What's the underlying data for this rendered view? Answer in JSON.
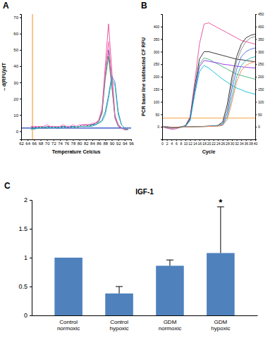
{
  "chart_data": [
    {
      "type": "line",
      "panel_label": "A",
      "x_label": "Temperature Celcius",
      "y_label": "– d(RFU)/dT",
      "x": [
        65,
        66,
        67,
        68,
        69,
        70,
        71,
        72,
        73,
        74,
        75,
        76,
        77,
        78,
        79,
        80,
        81,
        82,
        83,
        84,
        85,
        86,
        87,
        88,
        89,
        90,
        91,
        92,
        93,
        94,
        95
      ],
      "xlim": [
        62,
        96
      ],
      "xticks": [
        62,
        64,
        66,
        68,
        70,
        72,
        74,
        76,
        78,
        80,
        82,
        84,
        86,
        88,
        90,
        92,
        94,
        96
      ],
      "ylim": [
        -5,
        72
      ],
      "yticks": [
        0,
        10,
        20,
        30,
        40,
        50,
        60,
        70
      ],
      "reference_lines": [
        {
          "axis": "x",
          "value": 65.5,
          "color": "#f4a340"
        },
        {
          "axis": "y",
          "value": 2,
          "color": "#1f3fbf"
        }
      ],
      "series": [
        {
          "color": "#e8489a",
          "values": [
            2,
            3,
            2,
            3,
            2,
            3,
            3,
            2,
            3,
            3,
            2,
            3,
            3,
            3,
            3,
            3,
            3,
            4,
            4,
            4,
            5,
            7,
            14,
            40,
            66,
            38,
            10,
            4,
            2,
            1,
            1
          ]
        },
        {
          "color": "#7b3fa0",
          "values": [
            3,
            2,
            3,
            2,
            3,
            2,
            3,
            3,
            2,
            3,
            3,
            3,
            2,
            3,
            3,
            3,
            4,
            4,
            3,
            4,
            5,
            6,
            12,
            35,
            50,
            30,
            8,
            3,
            2,
            1,
            1
          ]
        },
        {
          "color": "#2e8b57",
          "values": [
            2,
            2,
            2,
            3,
            2,
            2,
            3,
            2,
            3,
            2,
            3,
            3,
            3,
            3,
            2,
            3,
            3,
            3,
            4,
            4,
            4,
            6,
            11,
            32,
            46,
            28,
            9,
            4,
            2,
            1,
            1
          ]
        },
        {
          "color": "#1f77d4",
          "values": [
            1,
            2,
            2,
            2,
            2,
            3,
            2,
            3,
            2,
            2,
            3,
            2,
            3,
            3,
            3,
            3,
            3,
            3,
            3,
            4,
            4,
            5,
            7,
            12,
            22,
            34,
            30,
            12,
            4,
            2,
            1
          ]
        },
        {
          "color": "#20b2aa",
          "values": [
            2,
            1,
            2,
            2,
            3,
            2,
            2,
            2,
            3,
            2,
            2,
            3,
            3,
            2,
            3,
            3,
            3,
            3,
            3,
            3,
            4,
            5,
            6,
            10,
            20,
            32,
            28,
            10,
            4,
            2,
            1
          ]
        },
        {
          "color": "#ff69b4",
          "values": [
            3,
            3,
            3,
            3,
            3,
            4,
            3,
            3,
            3,
            3,
            4,
            3,
            3,
            4,
            3,
            4,
            4,
            4,
            4,
            5,
            5,
            7,
            13,
            36,
            55,
            33,
            9,
            4,
            2,
            1,
            1
          ]
        }
      ]
    },
    {
      "type": "line",
      "panel_label": "B",
      "x_label": "Cycle",
      "y_label": "PCR base line subtracted CF RFU",
      "x": [
        0,
        2,
        4,
        6,
        8,
        10,
        12,
        14,
        16,
        18,
        20,
        22,
        24,
        26,
        28,
        30,
        32,
        34,
        36,
        38,
        40
      ],
      "xlim": [
        0,
        40
      ],
      "xticks": [
        0,
        2,
        4,
        6,
        8,
        10,
        12,
        14,
        16,
        18,
        20,
        22,
        24,
        26,
        28,
        30,
        32,
        34,
        36,
        38,
        40
      ],
      "ylim": [
        -50,
        450
      ],
      "yticks": [
        0,
        50,
        100,
        150,
        200,
        250,
        300,
        350,
        400
      ],
      "y2lim": [
        -50,
        450
      ],
      "y2ticks": [
        0,
        50,
        100,
        150,
        200,
        250,
        300,
        350,
        400,
        450
      ],
      "reference_lines": [
        {
          "axis": "y",
          "value": 35,
          "color": "#f4a340"
        }
      ],
      "series": [
        {
          "color": "#e8489a",
          "values": [
            0,
            -5,
            -10,
            -8,
            0,
            5,
            40,
            180,
            330,
            410,
            415,
            405,
            395,
            385,
            375,
            365,
            355,
            345,
            340,
            335,
            330
          ]
        },
        {
          "color": "#222222",
          "values": [
            0,
            -3,
            -5,
            -4,
            0,
            4,
            35,
            160,
            270,
            300,
            300,
            295,
            290,
            285,
            280,
            275,
            270,
            268,
            265,
            262,
            260
          ]
        },
        {
          "color": "#3cb371",
          "values": [
            0,
            -2,
            -4,
            -3,
            0,
            3,
            30,
            150,
            250,
            275,
            270,
            260,
            250,
            240,
            230,
            220,
            210,
            205,
            200,
            195,
            190
          ]
        },
        {
          "color": "#8a2be2",
          "values": [
            0,
            -2,
            -3,
            -2,
            0,
            2,
            28,
            140,
            240,
            265,
            262,
            258,
            255,
            250,
            248,
            245,
            242,
            240,
            238,
            236,
            235
          ]
        },
        {
          "color": "#00bcd4",
          "values": [
            0,
            -1,
            -3,
            -2,
            0,
            2,
            25,
            130,
            220,
            245,
            235,
            220,
            205,
            190,
            178,
            165,
            155,
            148,
            140,
            135,
            130
          ]
        },
        {
          "color": "#222222",
          "values": [
            0,
            0,
            -2,
            -3,
            -2,
            0,
            0,
            1,
            2,
            2,
            3,
            4,
            6,
            20,
            90,
            200,
            280,
            330,
            355,
            365,
            370
          ]
        },
        {
          "color": "#888888",
          "values": [
            0,
            0,
            -2,
            -2,
            -1,
            0,
            0,
            1,
            1,
            2,
            3,
            4,
            5,
            15,
            70,
            175,
            260,
            310,
            340,
            355,
            360
          ]
        },
        {
          "color": "#4169e1",
          "values": [
            0,
            0,
            -1,
            -2,
            -1,
            0,
            0,
            1,
            1,
            2,
            2,
            3,
            4,
            10,
            55,
            150,
            230,
            280,
            300,
            310,
            315
          ]
        },
        {
          "color": "#20b2aa",
          "values": [
            0,
            0,
            -1,
            -1,
            0,
            0,
            0,
            1,
            1,
            1,
            2,
            3,
            4,
            8,
            40,
            120,
            200,
            245,
            265,
            275,
            280
          ]
        },
        {
          "color": "#ff7f50",
          "values": [
            0,
            0,
            -1,
            -1,
            0,
            0,
            0,
            0,
            1,
            1,
            2,
            2,
            3,
            6,
            30,
            100,
            180,
            225,
            245,
            255,
            260
          ]
        }
      ]
    },
    {
      "type": "bar",
      "panel_label": "C",
      "title": "IGF-1",
      "categories": [
        "Control normoxic",
        "Control hypoxic",
        "GDM normoxic",
        "GDM hypoxic"
      ],
      "values": [
        1,
        0.38,
        0.86,
        1.08
      ],
      "errors": [
        null,
        0.12,
        0.1,
        0.8
      ],
      "color": "#4f81bd",
      "ylim": [
        0,
        2
      ],
      "yticks": [
        0,
        0.5,
        1,
        1.5,
        2
      ],
      "annotations": [
        {
          "category": "GDM hypoxic",
          "text": "*"
        }
      ]
    }
  ]
}
